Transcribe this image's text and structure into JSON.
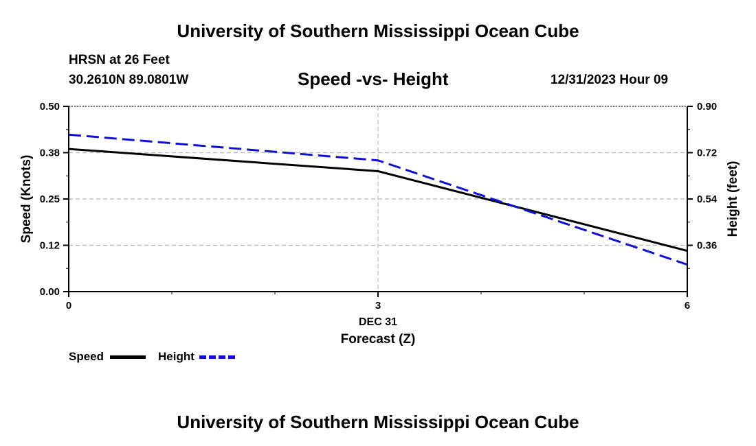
{
  "header": {
    "top_title": "University of Southern Mississippi Ocean Cube",
    "station_name": "HRSN at 26 Feet",
    "station_coords": "30.2610N  89.0801W",
    "subtitle": "Speed -vs- Height",
    "datetime": "12/31/2023 Hour 09",
    "bottom_title": "University of Southern Mississippi Ocean Cube"
  },
  "legend": {
    "speed_label": "Speed",
    "height_label": "Height"
  },
  "chart_data": {
    "type": "line",
    "xlabel": "Forecast (Z)",
    "xdate_label": "DEC 31",
    "ylabel_left": "Speed (Knots)",
    "ylabel_right": "Height (feet)",
    "x": [
      0,
      3,
      6
    ],
    "xlim": [
      0,
      6
    ],
    "x_ticks": [
      "0",
      "3",
      "6"
    ],
    "ylim_left": [
      0,
      0.5
    ],
    "y_ticks_left": [
      "0.00",
      "0.12",
      "0.25",
      "0.38",
      "0.50"
    ],
    "y_tick_values_left": [
      0,
      0.125,
      0.25,
      0.375,
      0.5
    ],
    "ylim_right": [
      0.18,
      0.9
    ],
    "y_ticks_right": [
      "0.36",
      "0.54",
      "0.72",
      "0.90"
    ],
    "y_tick_values_right": [
      0.36,
      0.54,
      0.72,
      0.9
    ],
    "series": [
      {
        "name": "Speed",
        "axis": "left",
        "color": "#000000",
        "dash": "solid",
        "values": [
          0.385,
          0.325,
          0.11
        ]
      },
      {
        "name": "Height",
        "axis": "right",
        "color": "#1010d0",
        "dash": "dashed",
        "values": [
          0.79,
          0.69,
          0.285
        ]
      }
    ],
    "grid_left_values": [
      0.125,
      0.25,
      0.375,
      0.5
    ],
    "grid_right_values": [
      0.36,
      0.54,
      0.72,
      0.9
    ],
    "grid_x_values": [
      3
    ]
  }
}
